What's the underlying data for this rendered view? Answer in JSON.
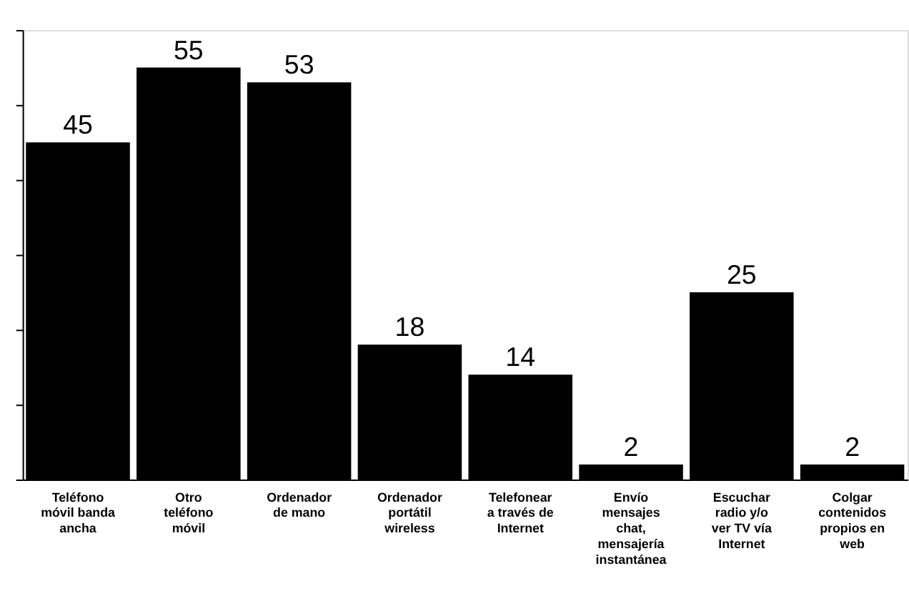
{
  "chart_data": {
    "type": "bar",
    "categories": [
      "Teléfono móvil banda ancha",
      "Otro teléfono móvil",
      "Ordenador de mano",
      "Ordenador portátil wireless",
      "Telefonear a través de Internet",
      "Envío mensajes chat, mensajería instantánea",
      "Escuchar radio y/o ver TV vía Internet",
      "Colgar contenidos propios en web"
    ],
    "values": [
      45,
      55,
      53,
      18,
      14,
      2,
      25,
      2
    ],
    "color": "#000000",
    "ylim": [
      0,
      60
    ],
    "yticks": [
      {
        "value": 0,
        "label": null
      },
      {
        "value": 10,
        "label": null
      },
      {
        "value": 20,
        "label": null
      },
      {
        "value": 30,
        "label": null
      },
      {
        "value": 40,
        "label": null
      },
      {
        "value": 50,
        "label": null
      },
      {
        "value": 60,
        "label": null
      }
    ],
    "data_labels": true
  }
}
